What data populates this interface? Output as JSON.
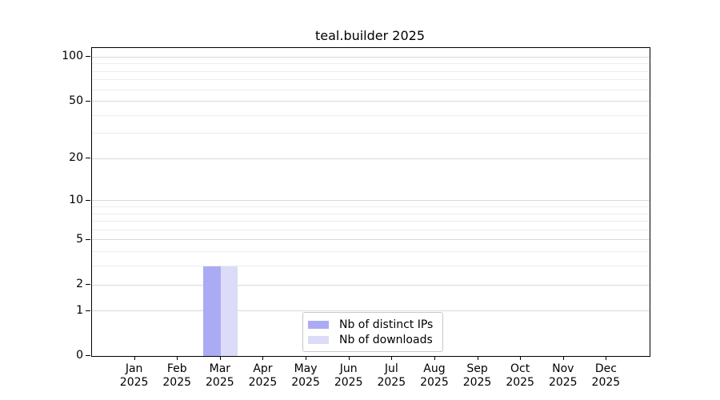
{
  "chart_data": {
    "type": "bar",
    "title": "teal.builder 2025",
    "categories": [
      "Jan",
      "Feb",
      "Mar",
      "Apr",
      "May",
      "Jun",
      "Jul",
      "Aug",
      "Sep",
      "Oct",
      "Nov",
      "Dec"
    ],
    "category_year": "2025",
    "series": [
      {
        "name": "Nb of distinct IPs",
        "color": "#ababf3",
        "values": [
          0,
          0,
          3,
          0,
          0,
          0,
          0,
          0,
          0,
          0,
          0,
          0
        ]
      },
      {
        "name": "Nb of downloads",
        "color": "#dcdcf8",
        "values": [
          0,
          0,
          3,
          0,
          0,
          0,
          0,
          0,
          0,
          0,
          0,
          0
        ]
      }
    ],
    "y_axis": {
      "scale": "log1p",
      "ylim": [
        0,
        115
      ],
      "major_ticks": [
        0,
        1,
        2,
        5,
        10,
        20,
        50,
        100
      ],
      "minor_gridlines": [
        3,
        4,
        6,
        7,
        8,
        9,
        30,
        40,
        60,
        70,
        80,
        90
      ]
    },
    "legend": {
      "position": "bottom-center",
      "entries": [
        "Nb of distinct IPs",
        "Nb of downloads"
      ]
    },
    "colors": {
      "axis": "#000000",
      "grid_major": "#d9d9d9",
      "grid_minor": "#eeeeee",
      "legend_border": "#c8c8c8",
      "text": "#000000",
      "background": "#ffffff"
    }
  }
}
